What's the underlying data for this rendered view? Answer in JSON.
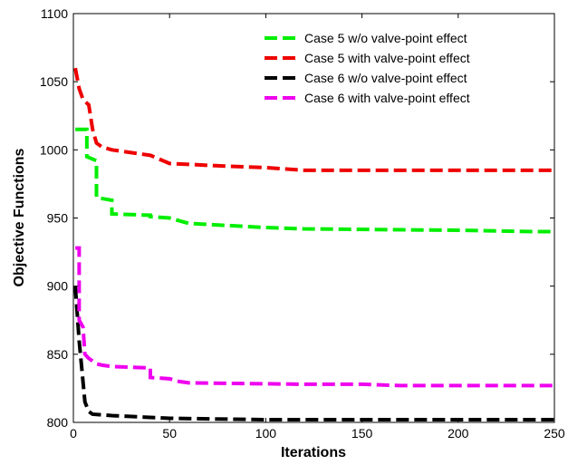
{
  "chart_data": {
    "type": "line",
    "title": "",
    "xlabel": "Iterations",
    "ylabel": "Objective Functions",
    "xlim": [
      0,
      250
    ],
    "ylim": [
      800,
      1100
    ],
    "xticks": [
      0,
      50,
      100,
      150,
      200,
      250
    ],
    "yticks": [
      800,
      850,
      900,
      950,
      1000,
      1050,
      1100
    ],
    "grid": false,
    "legend_position": "top-right",
    "series": [
      {
        "name": "Case 5 w/o valve-point effect",
        "color": "#00ee00",
        "x": [
          1,
          7,
          7,
          12,
          12,
          20,
          20,
          40,
          40,
          50,
          60,
          100,
          120,
          200,
          240,
          250
        ],
        "y": [
          1015,
          1015,
          995,
          992,
          965,
          963,
          953,
          952,
          951,
          950,
          946,
          943,
          942,
          941,
          940,
          940
        ]
      },
      {
        "name": "Case 5 with valve-point effect",
        "color": "#ee0000",
        "x": [
          1,
          3,
          5,
          8,
          10,
          12,
          15,
          20,
          30,
          40,
          45,
          50,
          80,
          100,
          120,
          250
        ],
        "y": [
          1060,
          1045,
          1037,
          1033,
          1015,
          1005,
          1002,
          1000,
          998,
          996,
          993,
          990,
          988,
          987,
          985,
          985
        ]
      },
      {
        "name": "Case 6 w/o valve-point effect",
        "color": "#000000",
        "x": [
          1,
          2,
          3,
          4,
          5,
          6,
          8,
          10,
          20,
          50,
          100,
          250
        ],
        "y": [
          900,
          880,
          860,
          845,
          830,
          815,
          808,
          806,
          805,
          803,
          802,
          802
        ]
      },
      {
        "name": "Case 6 with valve-point effect",
        "color": "#ee00ee",
        "x": [
          1,
          3,
          3,
          5,
          6,
          8,
          10,
          12,
          15,
          20,
          40,
          40,
          50,
          55,
          60,
          120,
          150,
          170,
          250
        ],
        "y": [
          928,
          928,
          875,
          870,
          850,
          847,
          845,
          843,
          842,
          841,
          840,
          833,
          832,
          830,
          829,
          828,
          828,
          827,
          827
        ]
      }
    ]
  }
}
